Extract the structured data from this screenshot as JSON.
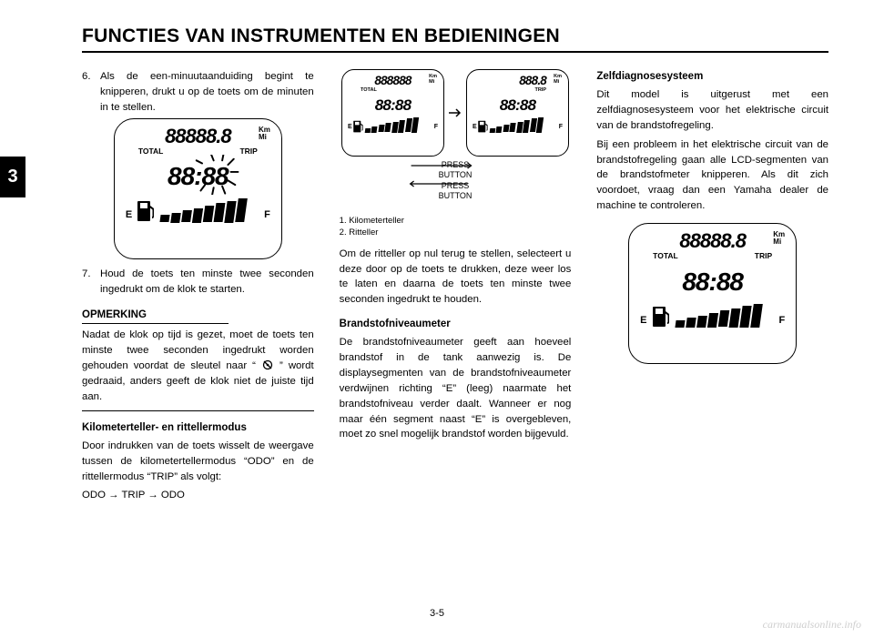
{
  "header": {
    "title": "FUNCTIES VAN INSTRUMENTEN EN BEDIENINGEN"
  },
  "tab": {
    "label": "3"
  },
  "page_number": "3-5",
  "watermark": "carmanualsonline.info",
  "lcd_display": {
    "odo_digits": "88888.8",
    "unit_km": "Km",
    "unit_mi": "Mi",
    "label_total": "TOTAL",
    "label_trip": "TRIP",
    "clock_digits": "88:88",
    "fuel_e": "E",
    "fuel_f": "F",
    "bar_count": 8,
    "bar_base_height": 8,
    "bar_step": 2.6,
    "bar_width": 9.5,
    "bar_width_sm": 6,
    "bar_base_height_sm": 5,
    "bar_step_sm": 1.7,
    "colors": {
      "border": "#000000",
      "fill": "#000000",
      "bg": "#ffffff"
    }
  },
  "small_displays": {
    "left": {
      "odo": "888888",
      "mode": "TOTAL"
    },
    "right": {
      "odo": "888.8",
      "mode": "TRIP"
    },
    "press_label_1": "PRESS",
    "press_label_2": "BUTTON"
  },
  "col1": {
    "item6_num": "6.",
    "item6_text": "Als de een-minuutaanduiding begint te knipperen, drukt u op de toets om de minuten in te stellen.",
    "item7_num": "7.",
    "item7_text": "Houd de toets ten minste twee seconden ingedrukt om de klok te starten.",
    "note_heading": "OPMERKING",
    "note_text_a": "Nadat de klok op tijd is gezet, moet de toets ten minste twee seconden ingedrukt worden gehouden voordat de sleutel naar “",
    "note_text_b": "” wordt gedraaid, anders geeft de klok niet de juiste tijd aan.",
    "sub2_heading": "Kilometerteller- en rittellermodus",
    "sub2_text": "Door indrukken van de toets wisselt de weergave tussen de kilometertellermodus “ODO” en de rittellermodus “TRIP” als volgt:",
    "sequence": "ODO → TRIP → ODO"
  },
  "col2": {
    "caption1": "1. Kilometerteller",
    "caption2": "2. Ritteller",
    "para1": "Om de ritteller op nul terug te stellen, selecteert u deze door op de toets te drukken, deze weer los te laten en daarna de toets ten minste twee seconden ingedrukt te houden.",
    "sub_heading": "Brandstofniveaumeter",
    "para2": "De brandstofniveaumeter geeft aan hoeveel brandstof in de tank aanwezig is. De displaysegmenten van de brandstofniveaumeter verdwijnen richting “E” (leeg) naarmate het brandstofniveau verder daalt. Wanneer er nog maar één segment naast “E” is overgebleven, moet zo snel mogelijk brandstof worden bijgevuld."
  },
  "col3": {
    "heading": "Zelfdiagnosesysteem",
    "para1": "Dit model is uitgerust met een zelfdiagnosesysteem voor het elektrische circuit van de brandstofregeling.",
    "para2": "Bij een probleem in het elektrische circuit van de brandstofregeling gaan alle LCD-segmenten van de brandstofmeter knipperen. Als dit zich voordoet, vraag dan een Yamaha dealer de machine te controleren."
  }
}
